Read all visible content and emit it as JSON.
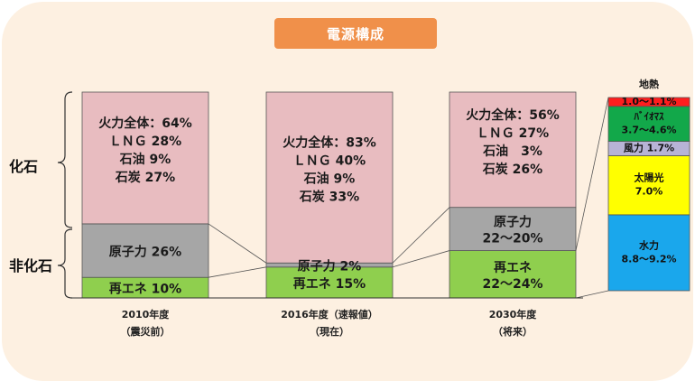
{
  "title": "電源構成",
  "side_labels": {
    "upper": "化石",
    "lower": "非化石"
  },
  "chart_data": {
    "type": "bar",
    "stacked": true,
    "title": "電源構成",
    "categories": [
      {
        "line1": "2010年度",
        "line2": "（震災前）"
      },
      {
        "line1": "2016年度（速報値）",
        "line2": "（現在）"
      },
      {
        "line1": "2030年度",
        "line2": "（将来）"
      }
    ],
    "series": [
      {
        "key": "renewable",
        "color": "#8fcf4e",
        "values": [
          10,
          15,
          23
        ],
        "labels": [
          [
            "再エネ 10%"
          ],
          [
            "再エネ 15%"
          ],
          [
            "再エネ",
            "22～24%"
          ]
        ]
      },
      {
        "key": "nuclear",
        "color": "#a6a6a6",
        "values": [
          26,
          2,
          21
        ],
        "labels": [
          [
            "原子力 26%"
          ],
          [
            "原子力 2%"
          ],
          [
            "原子力",
            "22～20%"
          ]
        ]
      },
      {
        "key": "thermal",
        "color": "#e8bcc0",
        "values": [
          64,
          83,
          56
        ],
        "labels": [
          [
            "火力全体：64%",
            "ＬＮＧ 28%",
            "石油 9%",
            "石炭 27%"
          ],
          [
            "火力全体：83%",
            "ＬＮＧ 40%",
            "石油 9%",
            "石炭 33%"
          ],
          [
            "火力全体：56%",
            "ＬＮＧ 27%",
            "石油　3%",
            "石炭 26%"
          ]
        ]
      }
    ],
    "renewable_breakdown": {
      "category": "2030年度",
      "items": [
        {
          "key": "hydro",
          "lines": [
            "水力",
            "8.8～9.2%"
          ],
          "value": 9.0,
          "color": "#1aa7ec"
        },
        {
          "key": "solar",
          "lines": [
            "太陽光",
            "7.0%"
          ],
          "value": 7.0,
          "color": "#ffff00"
        },
        {
          "key": "wind",
          "lines": [
            "風力 1.7%"
          ],
          "value": 1.7,
          "color": "#b7b3d6"
        },
        {
          "key": "biomass",
          "lines": [
            "ﾊﾞｲｵﾏｽ",
            "3.7～4.6%"
          ],
          "value": 4.15,
          "color": "#12a84a"
        },
        {
          "key": "geothermal",
          "lines": [
            "1.0～1.1%"
          ],
          "value": 1.05,
          "color": "#ff1e1e"
        }
      ],
      "geothermal_name": "地熱"
    }
  }
}
